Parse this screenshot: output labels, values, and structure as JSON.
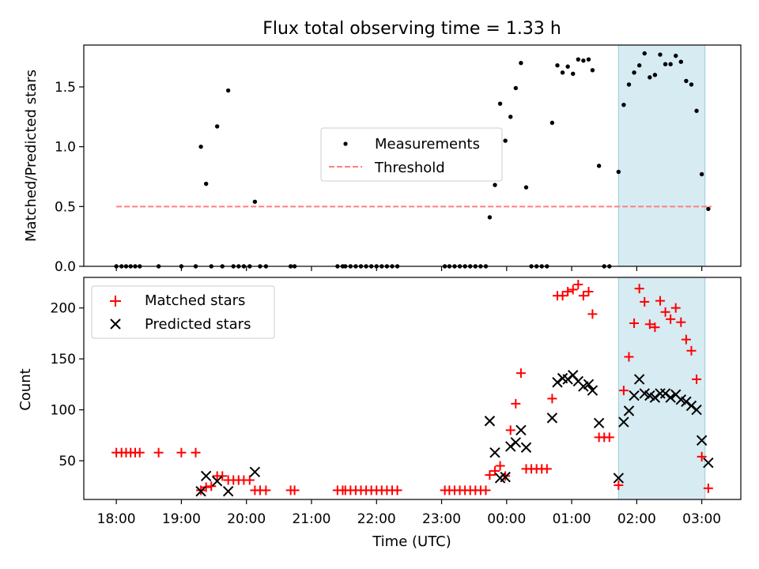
{
  "chart_data": [
    {
      "type": "scatter",
      "title": "Flux total observing time = 1.33 h",
      "xlabel": "",
      "ylabel": "Matched/Predicted stars",
      "ylim": [
        0,
        1.85
      ],
      "yticks": [
        0.0,
        0.5,
        1.0,
        1.5
      ],
      "ytick_labels": [
        "0.0",
        "0.5",
        "1.0",
        "1.5"
      ],
      "x_unit": "hours since 18:00 UTC",
      "xlim": [
        -0.5,
        9.6
      ],
      "shaded_region": [
        7.72,
        9.05
      ],
      "legend_position": "center",
      "legend": [
        "Measurements",
        "Threshold"
      ],
      "threshold": {
        "name": "Threshold",
        "value": 0.5,
        "x_range": [
          0,
          9.15
        ],
        "color": "#ff7f7f"
      },
      "series": [
        {
          "name": "Measurements",
          "color": "#000000",
          "points": [
            [
              0,
              0
            ],
            [
              0.08,
              0
            ],
            [
              0.15,
              0
            ],
            [
              0.22,
              0
            ],
            [
              0.29,
              0
            ],
            [
              0.36,
              0
            ],
            [
              0.65,
              0
            ],
            [
              1.0,
              0
            ],
            [
              1.22,
              0
            ],
            [
              1.3,
              1.0
            ],
            [
              1.38,
              0.69
            ],
            [
              1.46,
              0
            ],
            [
              1.55,
              1.17
            ],
            [
              1.63,
              0
            ],
            [
              1.72,
              1.47
            ],
            [
              1.8,
              0
            ],
            [
              1.88,
              0
            ],
            [
              1.96,
              0
            ],
            [
              2.05,
              0
            ],
            [
              2.13,
              0.54
            ],
            [
              2.21,
              0
            ],
            [
              2.3,
              0
            ],
            [
              2.68,
              0
            ],
            [
              2.74,
              0
            ],
            [
              3.4,
              0
            ],
            [
              3.48,
              0
            ],
            [
              3.52,
              0
            ],
            [
              3.6,
              0
            ],
            [
              3.68,
              0
            ],
            [
              3.76,
              0
            ],
            [
              3.84,
              0
            ],
            [
              3.92,
              0
            ],
            [
              4.0,
              0
            ],
            [
              4.08,
              0
            ],
            [
              4.16,
              0
            ],
            [
              4.24,
              0
            ],
            [
              4.32,
              0
            ],
            [
              5.05,
              0
            ],
            [
              5.12,
              0
            ],
            [
              5.2,
              0
            ],
            [
              5.28,
              0
            ],
            [
              5.36,
              0
            ],
            [
              5.44,
              0
            ],
            [
              5.52,
              0
            ],
            [
              5.6,
              0
            ],
            [
              5.68,
              0
            ],
            [
              5.74,
              0.41
            ],
            [
              5.82,
              0.68
            ],
            [
              5.9,
              1.36
            ],
            [
              5.98,
              1.05
            ],
            [
              6.06,
              1.25
            ],
            [
              6.14,
              1.49
            ],
            [
              6.22,
              1.7
            ],
            [
              6.3,
              0.66
            ],
            [
              6.38,
              0
            ],
            [
              6.46,
              0
            ],
            [
              6.54,
              0
            ],
            [
              6.62,
              0
            ],
            [
              6.7,
              1.2
            ],
            [
              6.78,
              1.68
            ],
            [
              6.86,
              1.62
            ],
            [
              6.94,
              1.67
            ],
            [
              7.02,
              1.61
            ],
            [
              7.1,
              1.73
            ],
            [
              7.18,
              1.72
            ],
            [
              7.26,
              1.73
            ],
            [
              7.32,
              1.64
            ],
            [
              7.42,
              0.84
            ],
            [
              7.5,
              0
            ],
            [
              7.58,
              0
            ],
            [
              7.72,
              0.79
            ],
            [
              7.8,
              1.35
            ],
            [
              7.88,
              1.52
            ],
            [
              7.96,
              1.62
            ],
            [
              8.04,
              1.68
            ],
            [
              8.12,
              1.78
            ],
            [
              8.2,
              1.58
            ],
            [
              8.28,
              1.6
            ],
            [
              8.36,
              1.77
            ],
            [
              8.44,
              1.69
            ],
            [
              8.52,
              1.69
            ],
            [
              8.6,
              1.76
            ],
            [
              8.68,
              1.71
            ],
            [
              8.76,
              1.55
            ],
            [
              8.84,
              1.52
            ],
            [
              8.92,
              1.3
            ],
            [
              9.0,
              0.77
            ],
            [
              9.1,
              0.48
            ]
          ]
        }
      ]
    },
    {
      "type": "scatter",
      "title": "",
      "xlabel": "Time (UTC)",
      "ylabel": "Count",
      "ylim": [
        12,
        230
      ],
      "yticks": [
        50,
        100,
        150,
        200
      ],
      "ytick_labels": [
        "50",
        "100",
        "150",
        "200"
      ],
      "xticks": [
        0,
        1,
        2,
        3,
        4,
        5,
        6,
        7,
        8,
        9
      ],
      "xtick_labels": [
        "18:00",
        "19:00",
        "20:00",
        "21:00",
        "22:00",
        "23:00",
        "00:00",
        "01:00",
        "02:00",
        "03:00"
      ],
      "x_unit": "hours since 18:00 UTC",
      "xlim": [
        -0.5,
        9.6
      ],
      "shaded_region": [
        7.72,
        9.05
      ],
      "legend_position": "top-left",
      "legend": [
        "Matched stars",
        "Predicted stars"
      ],
      "series": [
        {
          "name": "Matched stars",
          "marker": "+",
          "color": "#ff0000",
          "points": [
            [
              0,
              58
            ],
            [
              0.08,
              58
            ],
            [
              0.15,
              58
            ],
            [
              0.22,
              58
            ],
            [
              0.29,
              58
            ],
            [
              0.36,
              58
            ],
            [
              0.65,
              58
            ],
            [
              1.0,
              58
            ],
            [
              1.22,
              58
            ],
            [
              1.3,
              21
            ],
            [
              1.38,
              24
            ],
            [
              1.46,
              25
            ],
            [
              1.55,
              35
            ],
            [
              1.63,
              35
            ],
            [
              1.72,
              31
            ],
            [
              1.8,
              31
            ],
            [
              1.88,
              31
            ],
            [
              1.96,
              31
            ],
            [
              2.05,
              31
            ],
            [
              2.13,
              21
            ],
            [
              2.21,
              21
            ],
            [
              2.3,
              21
            ],
            [
              2.68,
              21
            ],
            [
              2.74,
              21
            ],
            [
              3.4,
              21
            ],
            [
              3.48,
              21
            ],
            [
              3.52,
              21
            ],
            [
              3.6,
              21
            ],
            [
              3.68,
              21
            ],
            [
              3.76,
              21
            ],
            [
              3.84,
              21
            ],
            [
              3.92,
              21
            ],
            [
              4.0,
              21
            ],
            [
              4.08,
              21
            ],
            [
              4.16,
              21
            ],
            [
              4.24,
              21
            ],
            [
              4.32,
              21
            ],
            [
              5.05,
              21
            ],
            [
              5.12,
              21
            ],
            [
              5.2,
              21
            ],
            [
              5.28,
              21
            ],
            [
              5.36,
              21
            ],
            [
              5.44,
              21
            ],
            [
              5.52,
              21
            ],
            [
              5.6,
              21
            ],
            [
              5.68,
              21
            ],
            [
              5.74,
              36
            ],
            [
              5.82,
              40
            ],
            [
              5.9,
              45
            ],
            [
              5.98,
              35
            ],
            [
              6.06,
              80
            ],
            [
              6.14,
              106
            ],
            [
              6.22,
              136
            ],
            [
              6.3,
              42
            ],
            [
              6.38,
              42
            ],
            [
              6.46,
              42
            ],
            [
              6.54,
              42
            ],
            [
              6.62,
              42
            ],
            [
              6.7,
              111
            ],
            [
              6.78,
              212
            ],
            [
              6.86,
              212
            ],
            [
              6.94,
              216
            ],
            [
              7.02,
              218
            ],
            [
              7.1,
              223
            ],
            [
              7.18,
              212
            ],
            [
              7.26,
              216
            ],
            [
              7.32,
              194
            ],
            [
              7.42,
              73
            ],
            [
              7.5,
              73
            ],
            [
              7.58,
              73
            ],
            [
              7.72,
              26
            ],
            [
              7.8,
              119
            ],
            [
              7.88,
              152
            ],
            [
              7.96,
              185
            ],
            [
              8.04,
              219
            ],
            [
              8.12,
              206
            ],
            [
              8.2,
              184
            ],
            [
              8.28,
              181
            ],
            [
              8.36,
              207
            ],
            [
              8.44,
              196
            ],
            [
              8.52,
              189
            ],
            [
              8.6,
              200
            ],
            [
              8.68,
              186
            ],
            [
              8.76,
              169
            ],
            [
              8.84,
              158
            ],
            [
              8.92,
              130
            ],
            [
              9.0,
              54
            ],
            [
              9.1,
              23
            ]
          ]
        },
        {
          "name": "Predicted stars",
          "marker": "x",
          "color": "#000000",
          "points": [
            [
              1.3,
              20
            ],
            [
              1.38,
              35
            ],
            [
              1.55,
              30
            ],
            [
              1.72,
              20
            ],
            [
              2.13,
              39
            ],
            [
              5.74,
              89
            ],
            [
              5.82,
              58
            ],
            [
              5.9,
              33
            ],
            [
              5.98,
              34
            ],
            [
              6.06,
              64
            ],
            [
              6.14,
              68
            ],
            [
              6.22,
              80
            ],
            [
              6.3,
              63
            ],
            [
              6.7,
              92
            ],
            [
              6.78,
              127
            ],
            [
              6.86,
              131
            ],
            [
              6.94,
              130
            ],
            [
              7.02,
              134
            ],
            [
              7.1,
              128
            ],
            [
              7.18,
              123
            ],
            [
              7.26,
              125
            ],
            [
              7.32,
              119
            ],
            [
              7.42,
              87
            ],
            [
              7.72,
              33
            ],
            [
              7.8,
              88
            ],
            [
              7.88,
              99
            ],
            [
              7.96,
              114
            ],
            [
              8.04,
              130
            ],
            [
              8.12,
              116
            ],
            [
              8.2,
              114
            ],
            [
              8.28,
              112
            ],
            [
              8.36,
              116
            ],
            [
              8.44,
              116
            ],
            [
              8.52,
              112
            ],
            [
              8.6,
              115
            ],
            [
              8.68,
              110
            ],
            [
              8.76,
              108
            ],
            [
              8.84,
              104
            ],
            [
              8.92,
              100
            ],
            [
              9.0,
              70
            ],
            [
              9.1,
              48
            ]
          ]
        }
      ]
    }
  ]
}
